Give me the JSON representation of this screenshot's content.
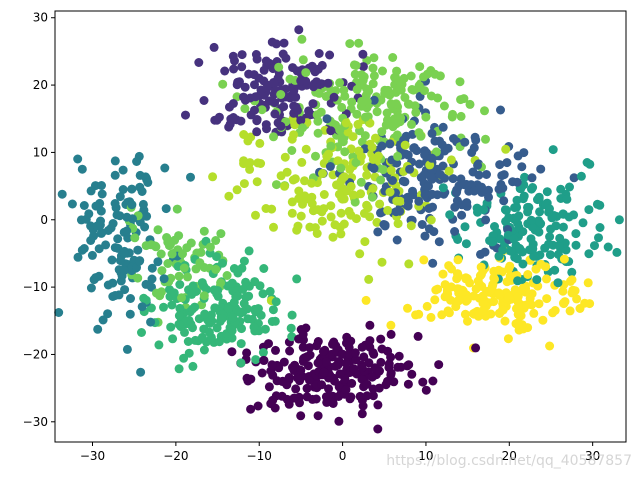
{
  "chart_data": {
    "type": "scatter",
    "title": "",
    "xlabel": "",
    "ylabel": "",
    "xlim": [
      -34.5,
      34.0
    ],
    "ylim": [
      -33.0,
      31.0
    ],
    "xticks": [
      -30,
      -20,
      -10,
      0,
      10,
      20,
      30
    ],
    "yticks": [
      -30,
      -20,
      -10,
      0,
      10,
      20,
      30
    ],
    "grid": false,
    "legend": "none",
    "colormap": "viridis",
    "clusters": [
      {
        "color": "#440154",
        "center": [
          -1.5,
          -22.5
        ],
        "spread": [
          5.0,
          3.2
        ],
        "count": 220
      },
      {
        "color": "#46327e",
        "center": [
          -7.0,
          19.0
        ],
        "spread": [
          4.5,
          4.0
        ],
        "count": 150
      },
      {
        "color": "#365c8d",
        "center": [
          11.0,
          6.0
        ],
        "spread": [
          5.5,
          5.0
        ],
        "count": 200
      },
      {
        "color": "#277f8e",
        "center": [
          -27.0,
          -3.0
        ],
        "spread": [
          3.0,
          6.0
        ],
        "count": 130
      },
      {
        "color": "#1f9e89",
        "center": [
          22.5,
          -1.0
        ],
        "spread": [
          4.5,
          4.0
        ],
        "count": 160
      },
      {
        "color": "#35b779",
        "center": [
          -15.0,
          -13.5
        ],
        "spread": [
          4.0,
          3.5
        ],
        "count": 170
      },
      {
        "color": "#6ece58",
        "center": [
          -19.0,
          -6.0
        ],
        "spread": [
          3.0,
          3.5
        ],
        "count": 70
      },
      {
        "color": "#7ad151",
        "center": [
          3.0,
          16.0
        ],
        "spread": [
          6.0,
          4.5
        ],
        "count": 200
      },
      {
        "color": "#b5de2b",
        "center": [
          0.0,
          5.0
        ],
        "spread": [
          6.0,
          5.0
        ],
        "count": 170
      },
      {
        "color": "#fde725",
        "center": [
          18.5,
          -11.0
        ],
        "spread": [
          5.0,
          2.8
        ],
        "count": 180
      }
    ],
    "annotations": [
      "https://blog.csdn.net/qq_40587857"
    ]
  }
}
